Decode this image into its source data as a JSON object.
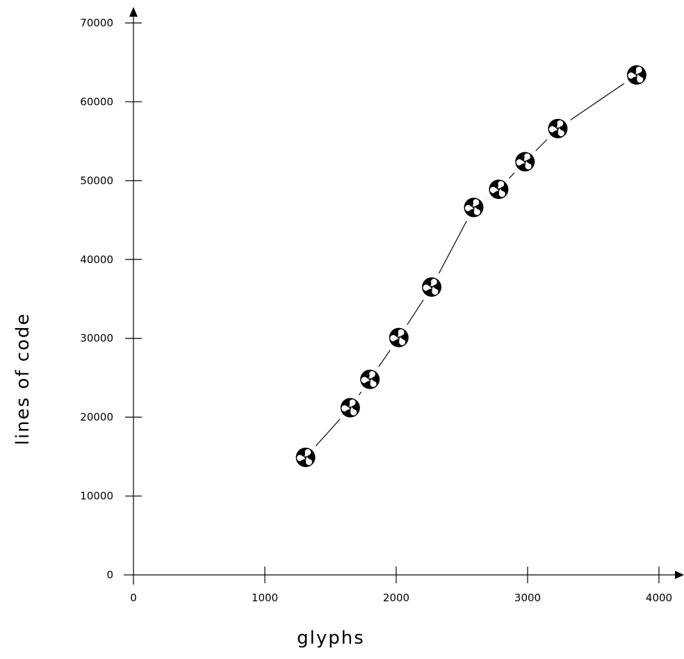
{
  "chart_data": {
    "type": "line",
    "xlabel": "glyphs",
    "ylabel": "lines of code",
    "xlim": [
      0,
      4000
    ],
    "ylim": [
      0,
      70000
    ],
    "x_ticks": [
      0,
      1000,
      2000,
      3000,
      4000
    ],
    "y_ticks": [
      0,
      10000,
      20000,
      30000,
      40000,
      50000,
      60000,
      70000
    ],
    "x_tick_labels": [
      "0",
      "1000",
      "2000",
      "3000",
      "4000"
    ],
    "y_tick_labels": [
      "0",
      "10000",
      "20000",
      "30000",
      "40000",
      "50000",
      "60000",
      "70000"
    ],
    "grid": false,
    "marker": "tomoe-icon",
    "line_color": "#000000",
    "series": [
      {
        "x": [
          1310,
          1650,
          1800,
          2020,
          2270,
          2590,
          2780,
          2980,
          3230,
          3830
        ],
        "y": [
          14900,
          21200,
          24800,
          30100,
          36500,
          46600,
          48900,
          52400,
          56600,
          63400
        ]
      }
    ]
  }
}
